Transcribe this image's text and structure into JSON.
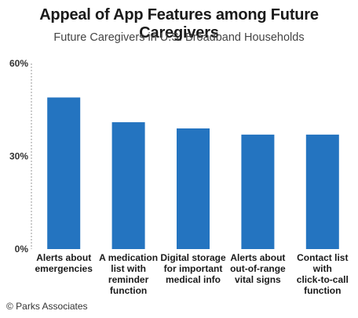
{
  "chart_data": {
    "type": "bar",
    "title": "Appeal of App Features among Future Caregivers",
    "subtitle": "Future Caregivers in U.S. Broadband Households",
    "categories": [
      [
        "Alerts about",
        "emergencies"
      ],
      [
        "A medication",
        "list with",
        "reminder",
        "function"
      ],
      [
        "Digital storage",
        "for important",
        "medical info"
      ],
      [
        "Alerts about",
        "out-of-range",
        "vital signs"
      ],
      [
        "Contact list",
        "with",
        "click-to-call",
        "function"
      ]
    ],
    "values": [
      49,
      41,
      39,
      37,
      37
    ],
    "ylim": [
      0,
      60
    ],
    "yticks": [
      0,
      30,
      60
    ],
    "ytick_labels": [
      "0%",
      "30%",
      "60%"
    ],
    "bar_color": "#2474c0",
    "grid": false
  },
  "credit": "© Parks Associates"
}
